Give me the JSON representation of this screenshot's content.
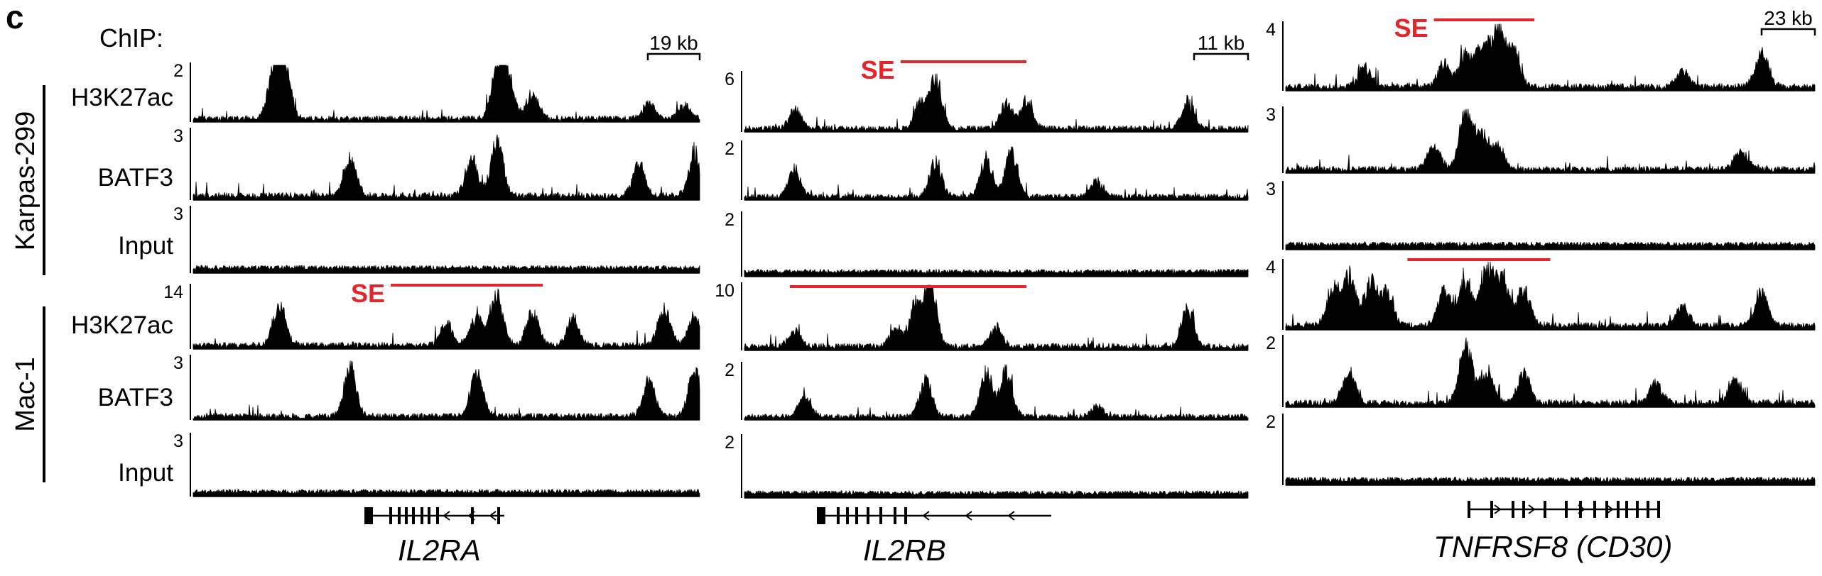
{
  "panel_label": "c",
  "chip_label": "ChIP:",
  "cell_lines": [
    "Karpas-299",
    "Mac-1"
  ],
  "track_labels": [
    "H3K27ac",
    "BATF3",
    "Input",
    "H3K27ac",
    "BATF3",
    "Input"
  ],
  "se_label": "SE",
  "colors": {
    "signal": "#000000",
    "super_enhancer": "#e3262b"
  },
  "chart_data": [
    {
      "type": "area",
      "locus": "IL2RA",
      "gene_label": "IL2RA",
      "scale_bar": "19 kb",
      "tracks": [
        {
          "cell_line": "Karpas-299",
          "mark": "H3K27ac",
          "ymax": "2",
          "peaks": [
            [
              0.16,
              0.9
            ],
            [
              0.18,
              0.95
            ],
            [
              0.6,
              0.8
            ],
            [
              0.62,
              0.9
            ],
            [
              0.67,
              0.45
            ],
            [
              0.9,
              0.3
            ],
            [
              0.97,
              0.25
            ]
          ]
        },
        {
          "cell_line": "Karpas-299",
          "mark": "BATF3",
          "ymax": "3",
          "peaks": [
            [
              0.31,
              0.6
            ],
            [
              0.55,
              0.55
            ],
            [
              0.6,
              0.85
            ],
            [
              0.88,
              0.5
            ],
            [
              0.99,
              0.65
            ]
          ]
        },
        {
          "cell_line": "Karpas-299",
          "mark": "Input",
          "ymax": "3",
          "peaks": []
        },
        {
          "cell_line": "Mac-1",
          "mark": "H3K27ac",
          "ymax": "14",
          "peaks": [
            [
              0.17,
              0.7
            ],
            [
              0.5,
              0.35
            ],
            [
              0.56,
              0.5
            ],
            [
              0.6,
              0.9
            ],
            [
              0.67,
              0.55
            ],
            [
              0.75,
              0.45
            ],
            [
              0.93,
              0.6
            ],
            [
              0.99,
              0.5
            ]
          ]
        },
        {
          "cell_line": "Mac-1",
          "mark": "BATF3",
          "ymax": "3",
          "peaks": [
            [
              0.31,
              0.8
            ],
            [
              0.56,
              0.75
            ],
            [
              0.9,
              0.6
            ],
            [
              0.99,
              0.75
            ]
          ]
        },
        {
          "cell_line": "Mac-1",
          "mark": "Input",
          "ymax": "3",
          "peaks": []
        }
      ],
      "super_enhancers": [
        {
          "cell_line": "Mac-1",
          "start": 0.39,
          "end": 0.69,
          "labeled": true
        }
      ]
    },
    {
      "type": "area",
      "locus": "IL2RB",
      "gene_label": "IL2RB",
      "scale_bar": "11 kb",
      "tracks": [
        {
          "cell_line": "Karpas-299",
          "mark": "H3K27ac",
          "ymax": "6",
          "peaks": [
            [
              0.1,
              0.35
            ],
            [
              0.35,
              0.45
            ],
            [
              0.38,
              0.9
            ],
            [
              0.52,
              0.45
            ],
            [
              0.56,
              0.5
            ],
            [
              0.88,
              0.5
            ]
          ]
        },
        {
          "cell_line": "Karpas-299",
          "mark": "BATF3",
          "ymax": "2",
          "peaks": [
            [
              0.1,
              0.5
            ],
            [
              0.38,
              0.65
            ],
            [
              0.48,
              0.7
            ],
            [
              0.53,
              0.9
            ],
            [
              0.7,
              0.3
            ]
          ]
        },
        {
          "cell_line": "Karpas-299",
          "mark": "Input",
          "ymax": "2",
          "peaks": []
        },
        {
          "cell_line": "Mac-1",
          "mark": "H3K27ac",
          "ymax": "10",
          "peaks": [
            [
              0.1,
              0.25
            ],
            [
              0.3,
              0.3
            ],
            [
              0.34,
              0.65
            ],
            [
              0.37,
              0.95
            ],
            [
              0.5,
              0.3
            ],
            [
              0.88,
              0.65
            ]
          ]
        },
        {
          "cell_line": "Mac-1",
          "mark": "BATF3",
          "ymax": "2",
          "peaks": [
            [
              0.12,
              0.4
            ],
            [
              0.36,
              0.7
            ],
            [
              0.48,
              0.8
            ],
            [
              0.52,
              0.85
            ],
            [
              0.7,
              0.2
            ]
          ]
        },
        {
          "cell_line": "Mac-1",
          "mark": "Input",
          "ymax": "2",
          "peaks": []
        }
      ],
      "super_enhancers": [
        {
          "cell_line": "Karpas-299",
          "start": 0.31,
          "end": 0.56,
          "labeled": true
        },
        {
          "cell_line": "Mac-1",
          "start": 0.09,
          "end": 0.56,
          "labeled": false
        }
      ]
    },
    {
      "type": "area",
      "locus": "TNFRSF8",
      "gene_label": "TNFRSF8",
      "gene_label_alias": "(CD30)",
      "scale_bar": "23 kb",
      "tracks": [
        {
          "cell_line": "Karpas-299",
          "mark": "H3K27ac",
          "ymax": "4",
          "peaks": [
            [
              0.15,
              0.3
            ],
            [
              0.3,
              0.35
            ],
            [
              0.34,
              0.5
            ],
            [
              0.37,
              0.6
            ],
            [
              0.4,
              0.95
            ],
            [
              0.43,
              0.55
            ],
            [
              0.75,
              0.25
            ],
            [
              0.9,
              0.55
            ]
          ]
        },
        {
          "cell_line": "Karpas-299",
          "mark": "BATF3",
          "ymax": "3",
          "peaks": [
            [
              0.28,
              0.4
            ],
            [
              0.34,
              0.95
            ],
            [
              0.37,
              0.55
            ],
            [
              0.4,
              0.4
            ],
            [
              0.86,
              0.3
            ]
          ]
        },
        {
          "cell_line": "Karpas-299",
          "mark": "Input",
          "ymax": "3",
          "peaks": []
        },
        {
          "cell_line": "Mac-1",
          "mark": "H3K27ac",
          "ymax": "4",
          "peaks": [
            [
              0.09,
              0.55
            ],
            [
              0.12,
              0.75
            ],
            [
              0.16,
              0.65
            ],
            [
              0.19,
              0.5
            ],
            [
              0.3,
              0.55
            ],
            [
              0.34,
              0.7
            ],
            [
              0.38,
              0.9
            ],
            [
              0.41,
              0.8
            ],
            [
              0.45,
              0.55
            ],
            [
              0.75,
              0.3
            ],
            [
              0.9,
              0.5
            ]
          ]
        },
        {
          "cell_line": "Mac-1",
          "mark": "BATF3",
          "ymax": "2",
          "peaks": [
            [
              0.12,
              0.45
            ],
            [
              0.34,
              0.9
            ],
            [
              0.38,
              0.5
            ],
            [
              0.45,
              0.45
            ],
            [
              0.7,
              0.3
            ],
            [
              0.85,
              0.35
            ]
          ]
        },
        {
          "cell_line": "Mac-1",
          "mark": "Input",
          "ymax": "2",
          "peaks": []
        }
      ],
      "super_enhancers": [
        {
          "cell_line": "Karpas-299",
          "start": 0.28,
          "end": 0.47,
          "labeled": true
        },
        {
          "cell_line": "Mac-1",
          "start": 0.23,
          "end": 0.5,
          "labeled": false
        }
      ]
    }
  ]
}
